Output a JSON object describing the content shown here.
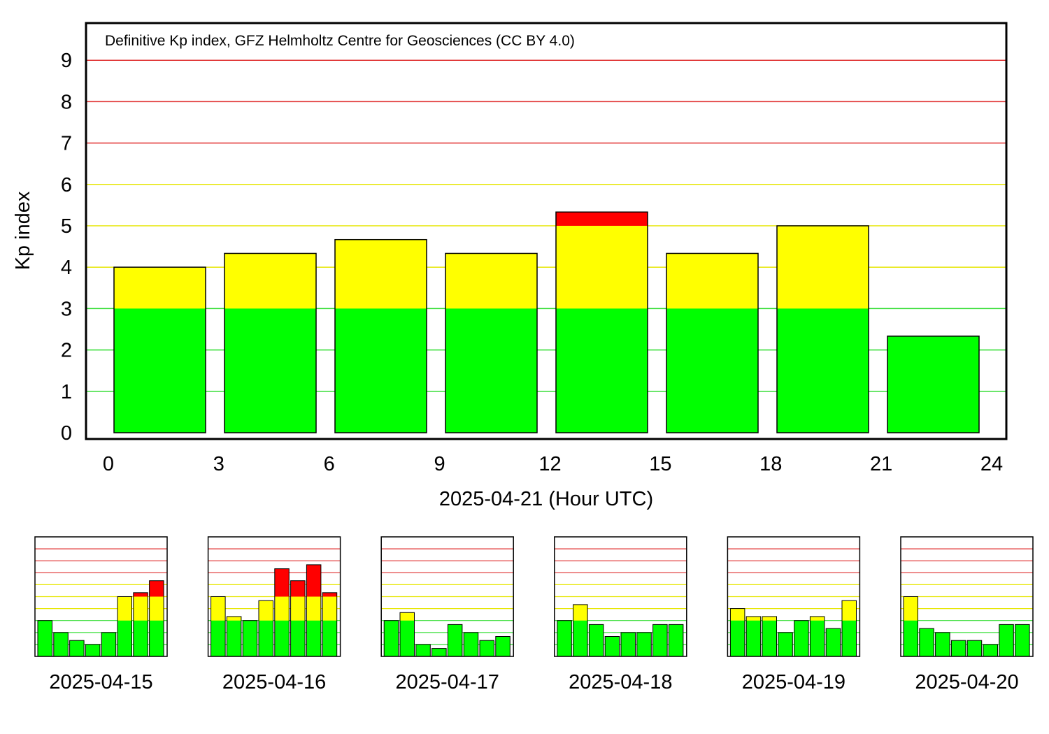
{
  "colors": {
    "quiet": "#00ff00",
    "active": "#ffff00",
    "storm": "#ff0000",
    "grid_low": "#33dd33",
    "grid_mid": "#e6e600",
    "grid_high": "#e03030"
  },
  "chart_data": [
    {
      "type": "bar",
      "title": "Definitive Kp index, GFZ Helmholtz Centre for Geosciences (CC BY 4.0)",
      "xlabel": "2025-04-21 (Hour UTC)",
      "ylabel": "Kp index",
      "x_ticks": [
        "0",
        "3",
        "6",
        "9",
        "12",
        "15",
        "18",
        "21",
        "24"
      ],
      "y_ticks": [
        "0",
        "1",
        "2",
        "3",
        "4",
        "5",
        "6",
        "7",
        "8",
        "9"
      ],
      "ylim": [
        0,
        9.7
      ],
      "xlim": [
        0,
        24
      ],
      "categories": [
        "00-03",
        "03-06",
        "06-09",
        "09-12",
        "12-15",
        "15-18",
        "18-21",
        "21-24"
      ],
      "values": [
        4.0,
        4.333,
        4.667,
        4.333,
        5.333,
        4.333,
        5.0,
        2.333
      ],
      "color_thresholds": [
        3,
        5
      ],
      "grid": true
    },
    {
      "type": "bar",
      "date": "2025-04-15",
      "values": [
        3.0,
        2.0,
        1.333,
        1.0,
        2.0,
        5.0,
        5.333,
        6.333
      ]
    },
    {
      "type": "bar",
      "date": "2025-04-16",
      "values": [
        5.0,
        3.333,
        3.0,
        4.667,
        7.333,
        6.333,
        7.667,
        5.333
      ]
    },
    {
      "type": "bar",
      "date": "2025-04-17",
      "values": [
        3.0,
        3.667,
        1.0,
        0.667,
        2.667,
        2.0,
        1.333,
        1.667
      ]
    },
    {
      "type": "bar",
      "date": "2025-04-18",
      "values": [
        3.0,
        4.333,
        2.667,
        1.667,
        2.0,
        2.0,
        2.667,
        2.667
      ]
    },
    {
      "type": "bar",
      "date": "2025-04-19",
      "values": [
        4.0,
        3.333,
        3.333,
        2.0,
        3.0,
        3.333,
        2.333,
        4.667
      ]
    },
    {
      "type": "bar",
      "date": "2025-04-20",
      "values": [
        5.0,
        2.333,
        2.0,
        1.333,
        1.333,
        1.0,
        2.667,
        2.667
      ]
    }
  ]
}
